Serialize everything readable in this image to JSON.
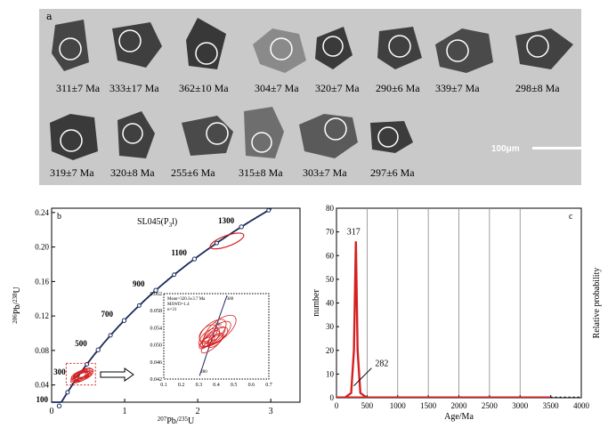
{
  "panel_a": {
    "letter": "a",
    "scale_label": "100μm",
    "ages": [
      "311±7 Ma",
      "333±17 Ma",
      "362±10 Ma",
      "304±7 Ma",
      "320±7 Ma",
      "290±6 Ma",
      "339±7 Ma",
      "298±8 Ma",
      "319±7 Ma",
      "320±8 Ma",
      "255±6 Ma",
      "315±8 Ma",
      "303±7 Ma",
      "297±6 Ma"
    ]
  },
  "chart_data": [
    {
      "type": "scatter",
      "panel": "b",
      "sample_label": "SL045(P",
      "sample_sub": "3",
      "sample_suffix": "l)",
      "xlabel_pre": "207",
      "xlabel_mid": "Pb/",
      "xlabel_sup2": "235",
      "xlabel_end": "U",
      "ylabel_pre": "206",
      "ylabel_mid": "Pb/",
      "ylabel_sup2": "238",
      "ylabel_end": "U",
      "xlim": [
        0,
        3.4
      ],
      "ylim": [
        0.02,
        0.245
      ],
      "x_ticks": [
        "0",
        "1",
        "2",
        "3"
      ],
      "y_ticks": [
        "0.04",
        "0.08",
        "0.12",
        "0.16",
        "0.20",
        "0.24"
      ],
      "concordia_ages": [
        "100",
        "300",
        "500",
        "700",
        "900",
        "1100",
        "1300"
      ],
      "inset": {
        "xlim": [
          0.1,
          0.7
        ],
        "ylim": [
          0.042,
          0.062
        ],
        "x_ticks": [
          "0.1",
          "0.2",
          "0.3",
          "0.4",
          "0.5",
          "0.6",
          "0.7"
        ],
        "y_ticks": [
          "0.042",
          "0.046",
          "0.050",
          "0.054",
          "0.058",
          "0.062"
        ],
        "annotation": [
          "Mean=320.3±3.7 Ma",
          "MSWD=1.4",
          "n=31"
        ],
        "curve_labels": [
          "380",
          "340",
          "280"
        ]
      }
    },
    {
      "type": "line",
      "panel": "c",
      "xlabel": "Age/Ma",
      "ylabel": "number",
      "right_label": "Relative probability",
      "xlim": [
        0,
        4000
      ],
      "ylim": [
        0,
        80
      ],
      "x_ticks": [
        "0",
        "500",
        "1000",
        "1500",
        "2000",
        "2500",
        "3000",
        "3500",
        "4000"
      ],
      "y_ticks": [
        "0",
        "10",
        "20",
        "30",
        "40",
        "50",
        "60",
        "70",
        "80"
      ],
      "peaks": [
        {
          "label": "317",
          "age": 317,
          "value": 66
        },
        {
          "label": "282",
          "age": 282,
          "value": 5
        }
      ]
    }
  ]
}
